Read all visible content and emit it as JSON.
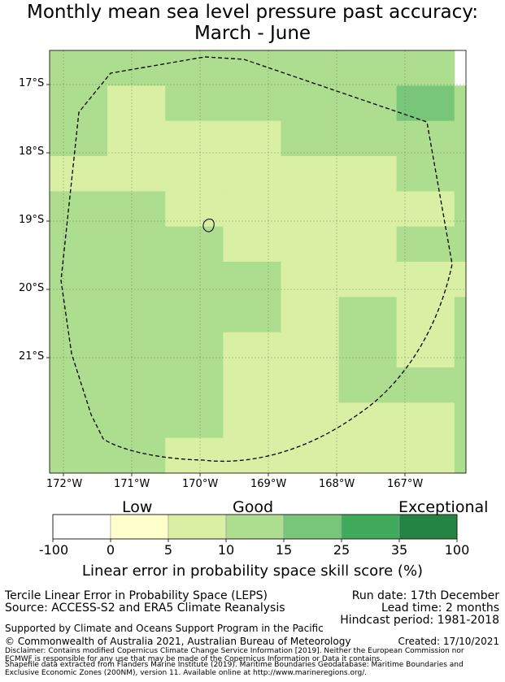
{
  "title": {
    "line1": "Monthly mean sea level pressure past accuracy:",
    "line2": "March - June"
  },
  "map": {
    "lat_labels": [
      "17°S",
      "18°S",
      "19°S",
      "20°S",
      "21°S"
    ],
    "lon_labels": [
      "172°W",
      "171°W",
      "170°W",
      "169°W",
      "168°W",
      "167°W"
    ],
    "colors": {
      "c0": "#ffffff",
      "c1": "#ffffcc",
      "c2": "#d9efa3",
      "c3": "#addd8e",
      "c4": "#78c679",
      "c5": "#41ab5d",
      "c6": "#238443"
    },
    "grid": [
      [
        "c3",
        "c3",
        "c3",
        "c3",
        "c3",
        "c3",
        "c3"
      ],
      [
        "c3",
        "c2",
        "c3",
        "c3",
        "c3",
        "c3",
        "c4",
        "c3"
      ],
      [
        "c3",
        "c2",
        "c2",
        "c2",
        "c3",
        "c3",
        "c3",
        "c3"
      ],
      [
        "c2",
        "c2",
        "c2",
        "c2",
        "c2",
        "c2",
        "c3",
        "c3"
      ],
      [
        "c3",
        "c3",
        "c2",
        "c2",
        "c2",
        "c2",
        "c2",
        "c3"
      ],
      [
        "c3",
        "c3",
        "c3",
        "c2",
        "c2",
        "c2",
        "c3",
        "c3"
      ],
      [
        "c3",
        "c3",
        "c3",
        "c3",
        "c2",
        "c2",
        "c2",
        "c2"
      ],
      [
        "c3",
        "c3",
        "c3",
        "c3",
        "c2",
        "c3",
        "c2",
        "c3"
      ],
      [
        "c3",
        "c3",
        "c3",
        "c2",
        "c2",
        "c3",
        "c2",
        "c3"
      ],
      [
        "c3",
        "c3",
        "c3",
        "c2",
        "c2",
        "c3",
        "c3",
        "c3"
      ],
      [
        "c3",
        "c3",
        "c3",
        "c2",
        "c2",
        "c2",
        "c2",
        "c3"
      ],
      [
        "c3",
        "c3",
        "c2",
        "c2",
        "c2",
        "c2",
        "c2",
        "c3"
      ]
    ]
  },
  "colorbar": {
    "category_labels": [
      "Low",
      "Good",
      "Exceptional"
    ],
    "ticks": [
      "-100",
      "0",
      "5",
      "10",
      "15",
      "25",
      "35",
      "100"
    ],
    "xlabel": "Linear error in probability space skill score (%)"
  },
  "footer": {
    "method": "Tercile Linear Error in Probability Space (LEPS)",
    "source": "Source: ACCESS-S2 and ERA5 Climate Reanalysis",
    "run_date": "Run date: 17th December",
    "lead_time": "Lead time: 2 months",
    "hindcast": "Hindcast period: 1981-2018",
    "support": "Supported by Climate and Oceans Support Program in the Pacific",
    "copyright": "© Commonwealth of Australia 2021, Australian Bureau of Meteorology",
    "created": "Created: 17/10/2021",
    "disclaimer1": "Disclaimer: Contains modified Copernicus Climate Change Service Information [2019]. Neither the European Commission nor",
    "disclaimer2": "ECMWF is responsible for any use that may be made of the Copernicus Information or Data it contains.",
    "shapefile1": "Shapefile data extracted from Flanders Marine Institute (2019). Maritime Boundaries Geodatabase: Maritime Boundaries and",
    "shapefile2": "Exclusive Economic Zones (200NM), version 11. Available online at http://www.marineregions.org/."
  }
}
